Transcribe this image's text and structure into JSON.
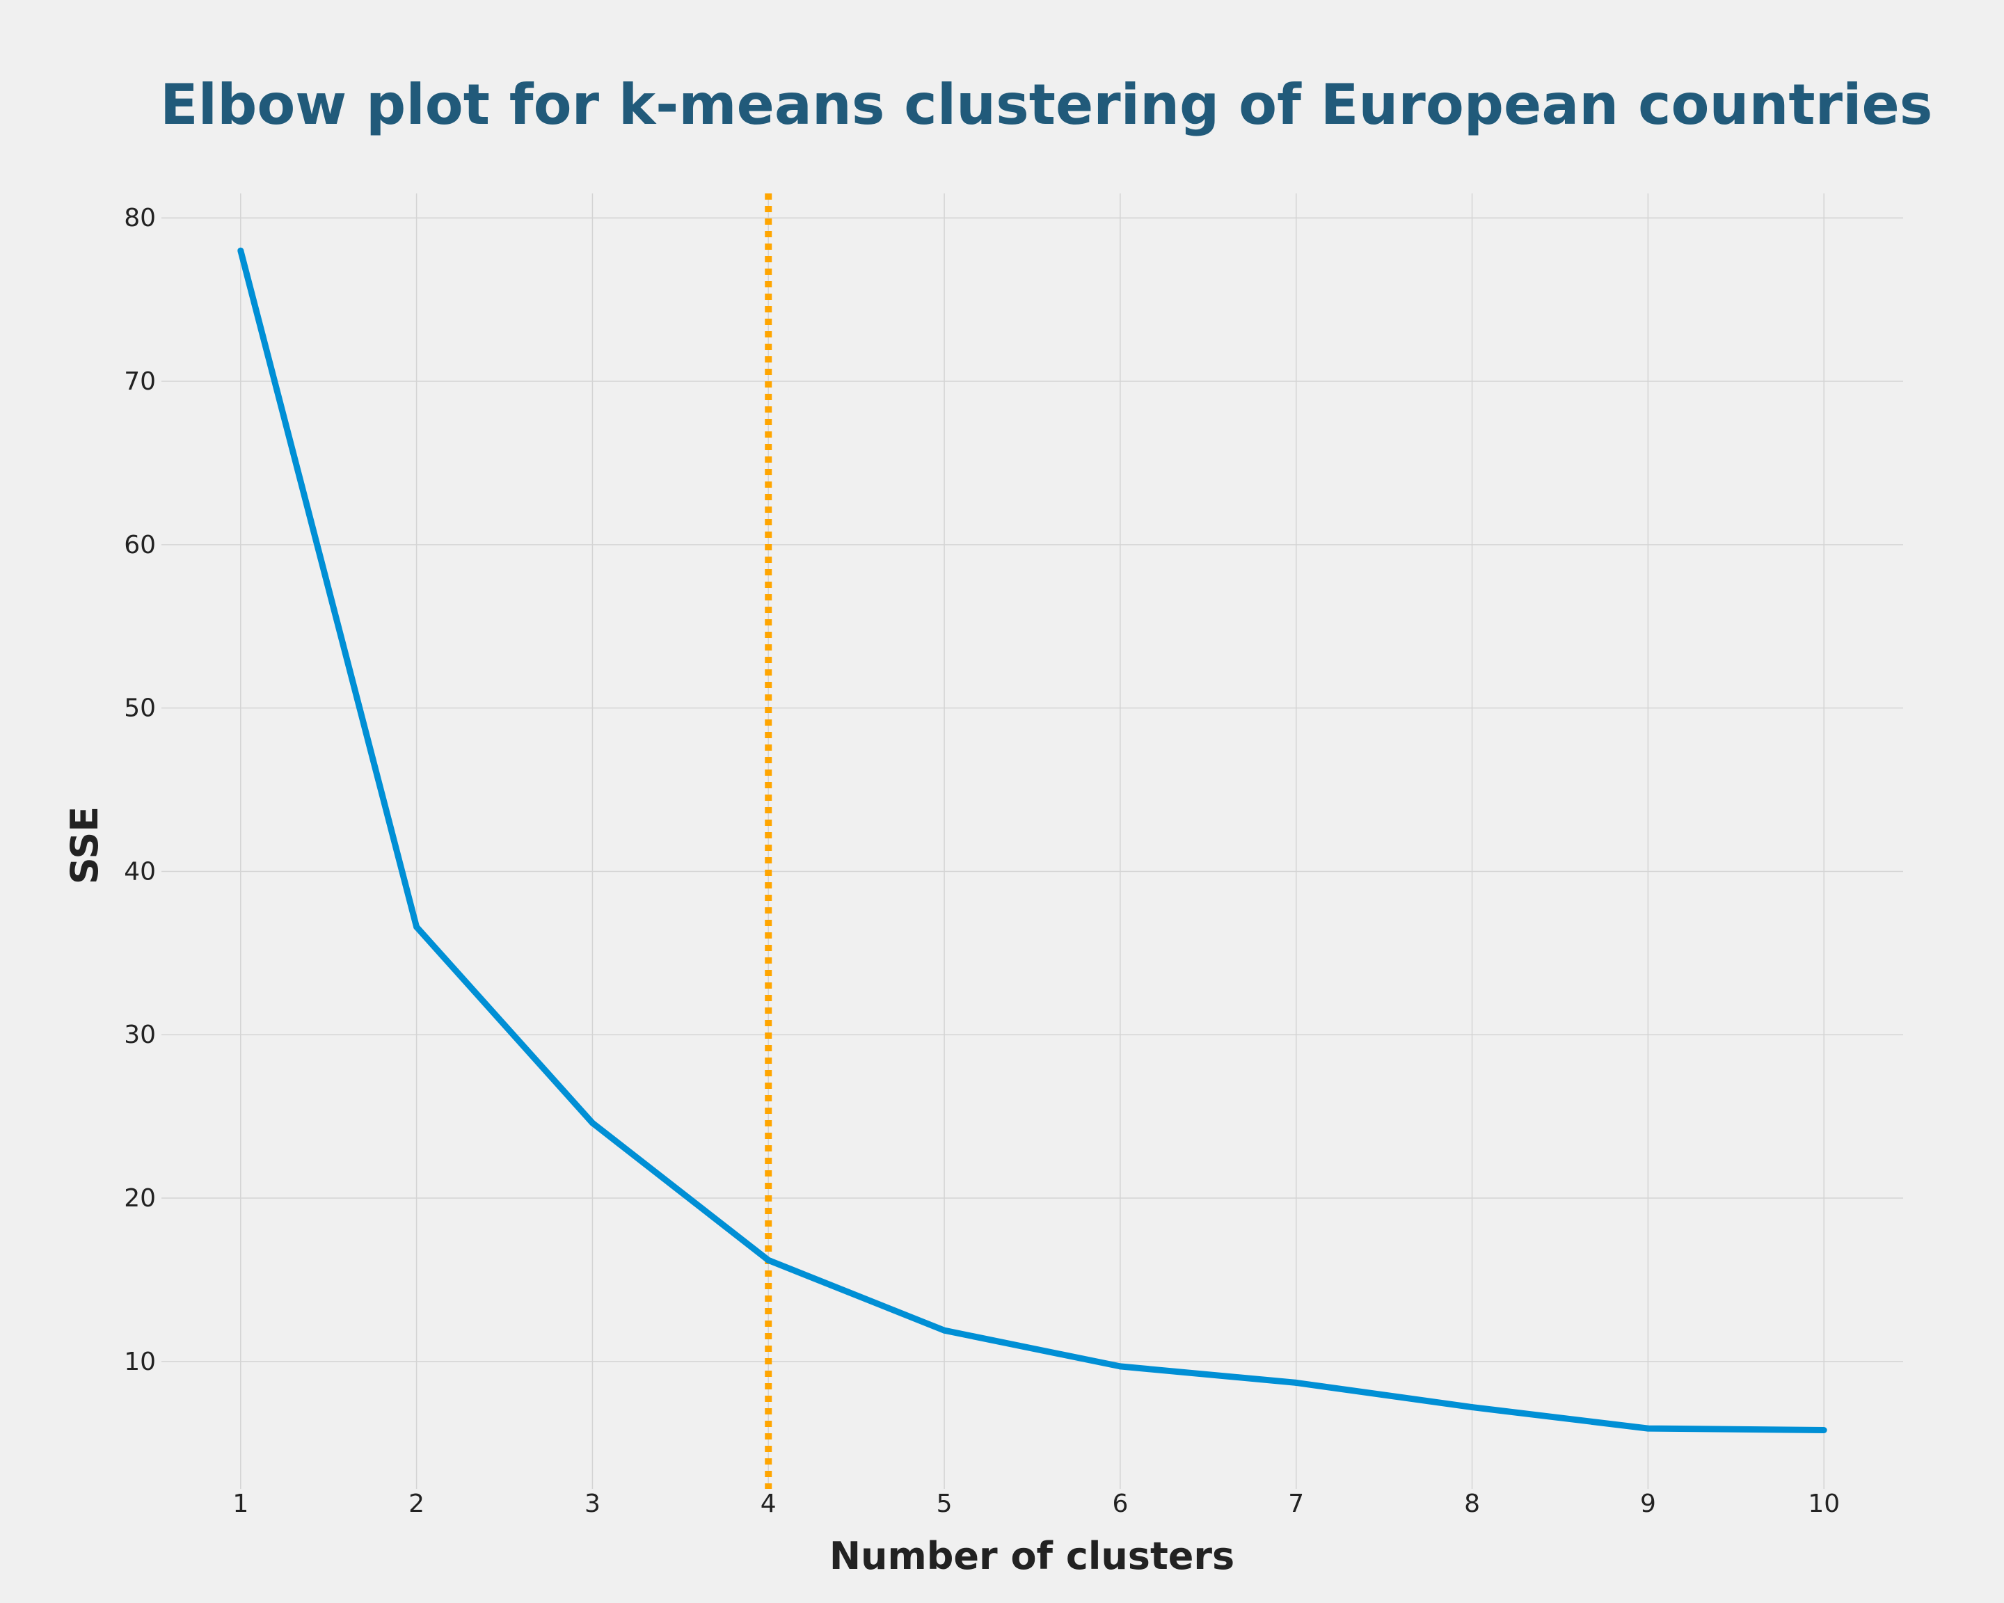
{
  "chart_data": {
    "type": "line",
    "title": "Elbow plot for k-means clustering of European countries",
    "xlabel": "Number of clusters",
    "ylabel": "SSE",
    "x": [
      1,
      2,
      3,
      4,
      5,
      6,
      7,
      8,
      9,
      10
    ],
    "series": [
      {
        "values": [
          78.0,
          36.6,
          24.6,
          16.2,
          11.9,
          9.7,
          8.7,
          7.2,
          5.9,
          5.8
        ],
        "color": "#008fd5"
      }
    ],
    "xticks": [
      "1",
      "2",
      "3",
      "4",
      "5",
      "6",
      "7",
      "8",
      "9",
      "10"
    ],
    "yticks": [
      "10",
      "20",
      "30",
      "40",
      "50",
      "60",
      "70",
      "80"
    ],
    "xlim": [
      0.55,
      10.45
    ],
    "ylim": [
      2.2,
      81.5
    ],
    "grid": true,
    "vline": {
      "x": 4,
      "color": "#ffa500",
      "style": "dotted"
    },
    "background": "#f0f0f0",
    "title_color": "#215a7a"
  }
}
